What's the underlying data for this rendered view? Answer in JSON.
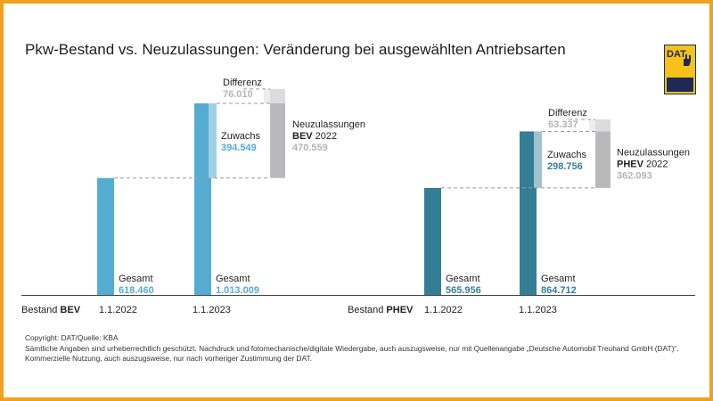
{
  "title": "Pkw-Bestand vs. Neuzulassungen: Veränderung bei ausgewählten Antriebsarten",
  "logo": {
    "text": "DAT",
    "icon": "dat-logo"
  },
  "colors": {
    "frame": "#f2a11c",
    "bev": "#55acd3",
    "bev_growth": "#9fd0e6",
    "phev": "#347e95",
    "phev_growth": "#9ec3ce",
    "reg": "#b9b9bb",
    "reg_diff": "#dcdcdd",
    "diff_text": "#b5b5b5"
  },
  "chart_data": [
    {
      "type": "bar",
      "group_prefix": "Bestand",
      "group_name": "BEV",
      "categories": [
        "1.1.2022",
        "1.1.2023"
      ],
      "values": [
        618460,
        1013009
      ],
      "value_labels": [
        "618.460",
        "1.013.009"
      ],
      "bar_label": "Gesamt",
      "growth": {
        "label": "Zuwachs",
        "value": 394549,
        "value_label": "394.549"
      },
      "registrations": {
        "label": "Neuzulassungen",
        "type": "BEV",
        "year": "2022",
        "value": 470559,
        "value_label": "470.559"
      },
      "difference": {
        "label": "Differenz",
        "value": 76010,
        "value_label": "76.010"
      }
    },
    {
      "type": "bar",
      "group_prefix": "Bestand",
      "group_name": "PHEV",
      "categories": [
        "1.1.2022",
        "1.1.2023"
      ],
      "values": [
        565956,
        864712
      ],
      "value_labels": [
        "565.956",
        "864.712"
      ],
      "bar_label": "Gesamt",
      "growth": {
        "label": "Zuwachs",
        "value": 298756,
        "value_label": "298.756"
      },
      "registrations": {
        "label": "Neuzulassungen",
        "type": "PHEV",
        "year": "2022",
        "value": 362093,
        "value_label": "362.093"
      },
      "difference": {
        "label": "Differenz",
        "value": 63337,
        "value_label": "63.337"
      }
    }
  ],
  "footer": {
    "copyright": "Copyright: DAT/Quelle: KBA",
    "line1": "Sämtliche Angaben sind urheberrechtlich geschützt. Nachdruck und fotomechanische/digitale Wiedergabe, auch auszugsweise, nur mit Quellenangabe „Deutsche Automobil Treuhand GmbH (DAT)“.",
    "line2": "Kommerzielle Nutzung, auch auszugsweise, nur nach vorheriger Zustimmung der DAT."
  }
}
